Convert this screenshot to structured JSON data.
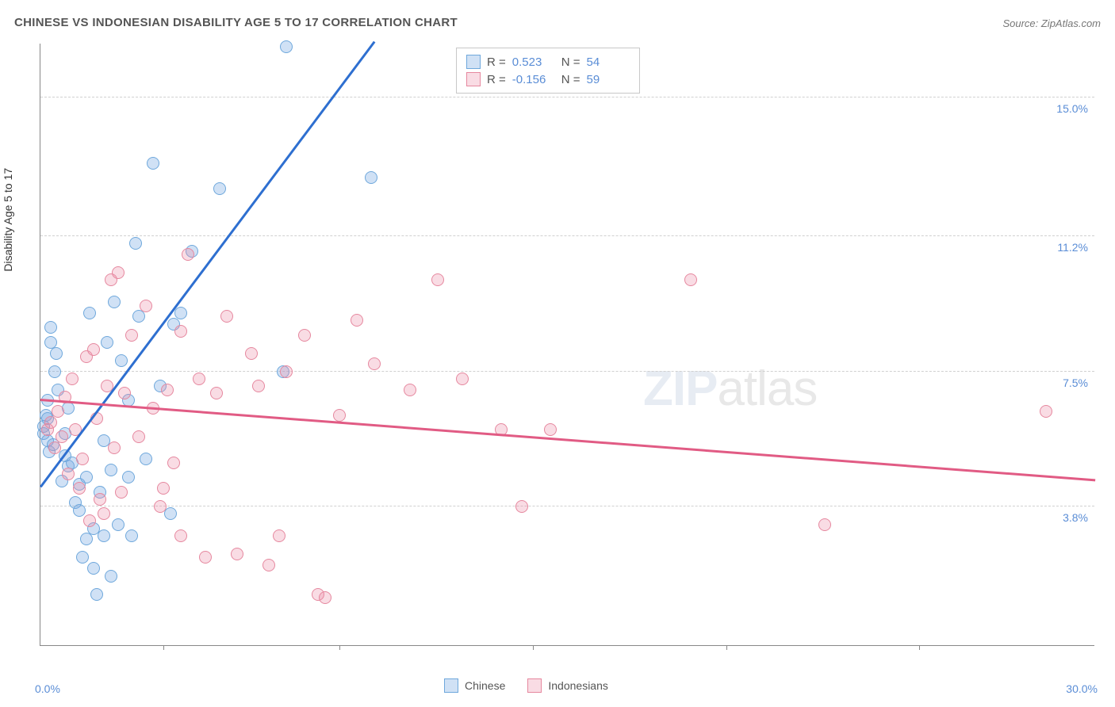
{
  "title": "CHINESE VS INDONESIAN DISABILITY AGE 5 TO 17 CORRELATION CHART",
  "source": "Source: ZipAtlas.com",
  "watermark_bold": "ZIP",
  "watermark_thin": "atlas",
  "chart": {
    "type": "scatter",
    "ylabel": "Disability Age 5 to 17",
    "xlim": [
      0,
      30
    ],
    "ylim": [
      0,
      16.5
    ],
    "x_axis_label_min": "0.0%",
    "x_axis_label_max": "30.0%",
    "xticks": [
      3.5,
      8.5,
      14.0,
      19.5,
      25.0
    ],
    "ygrid": [
      {
        "value": 3.8,
        "label": "3.8%"
      },
      {
        "value": 7.5,
        "label": "7.5%"
      },
      {
        "value": 11.2,
        "label": "11.2%"
      },
      {
        "value": 15.0,
        "label": "15.0%"
      }
    ],
    "background_color": "#ffffff",
    "grid_color": "#d0d0d0",
    "axis_color": "#888888",
    "tick_label_color": "#5a8dd6",
    "series": [
      {
        "name": "Chinese",
        "fill_color": "rgba(120,170,225,0.35)",
        "stroke_color": "#6fa8dc",
        "trend_color": "#2e6fd0",
        "trend": {
          "x1": 0.0,
          "y1": 4.3,
          "x2": 9.5,
          "y2": 16.5,
          "dash_extend_x": 11.5
        },
        "R": "0.523",
        "N": "54",
        "points": [
          [
            0.1,
            5.8
          ],
          [
            0.1,
            6.0
          ],
          [
            0.15,
            6.3
          ],
          [
            0.2,
            5.6
          ],
          [
            0.2,
            6.2
          ],
          [
            0.2,
            6.7
          ],
          [
            0.25,
            5.3
          ],
          [
            0.3,
            8.7
          ],
          [
            0.3,
            8.3
          ],
          [
            0.35,
            5.5
          ],
          [
            0.4,
            7.5
          ],
          [
            0.45,
            8.0
          ],
          [
            0.5,
            7.0
          ],
          [
            0.6,
            4.5
          ],
          [
            0.7,
            5.2
          ],
          [
            0.7,
            5.8
          ],
          [
            0.8,
            4.9
          ],
          [
            0.8,
            6.5
          ],
          [
            0.9,
            5.0
          ],
          [
            1.0,
            3.9
          ],
          [
            1.1,
            3.7
          ],
          [
            1.1,
            4.4
          ],
          [
            1.2,
            2.4
          ],
          [
            1.3,
            4.6
          ],
          [
            1.3,
            2.9
          ],
          [
            1.4,
            9.1
          ],
          [
            1.5,
            3.2
          ],
          [
            1.5,
            2.1
          ],
          [
            1.6,
            1.4
          ],
          [
            1.7,
            4.2
          ],
          [
            1.8,
            3.0
          ],
          [
            1.9,
            8.3
          ],
          [
            2.0,
            4.8
          ],
          [
            2.1,
            9.4
          ],
          [
            2.2,
            3.3
          ],
          [
            2.3,
            7.8
          ],
          [
            2.5,
            4.6
          ],
          [
            2.5,
            6.7
          ],
          [
            2.7,
            11.0
          ],
          [
            2.8,
            9.0
          ],
          [
            3.0,
            5.1
          ],
          [
            3.2,
            13.2
          ],
          [
            3.4,
            7.1
          ],
          [
            3.7,
            3.6
          ],
          [
            3.8,
            8.8
          ],
          [
            4.0,
            9.1
          ],
          [
            4.3,
            10.8
          ],
          [
            5.1,
            12.5
          ],
          [
            7.0,
            16.4
          ],
          [
            6.9,
            7.5
          ],
          [
            9.4,
            12.8
          ],
          [
            2.0,
            1.9
          ],
          [
            2.6,
            3.0
          ],
          [
            1.8,
            5.6
          ]
        ]
      },
      {
        "name": "Indonesians",
        "fill_color": "rgba(235,140,165,0.30)",
        "stroke_color": "#e6889f",
        "trend_color": "#e15b84",
        "trend": {
          "x1": 0.0,
          "y1": 6.7,
          "x2": 30.0,
          "y2": 4.5
        },
        "R": "-0.156",
        "N": "59",
        "points": [
          [
            0.2,
            5.9
          ],
          [
            0.3,
            6.1
          ],
          [
            0.4,
            5.4
          ],
          [
            0.5,
            6.4
          ],
          [
            0.6,
            5.7
          ],
          [
            0.7,
            6.8
          ],
          [
            0.8,
            4.7
          ],
          [
            0.9,
            7.3
          ],
          [
            1.0,
            5.9
          ],
          [
            1.1,
            4.3
          ],
          [
            1.2,
            5.1
          ],
          [
            1.3,
            7.9
          ],
          [
            1.4,
            3.4
          ],
          [
            1.5,
            8.1
          ],
          [
            1.6,
            6.2
          ],
          [
            1.7,
            4.0
          ],
          [
            1.8,
            3.6
          ],
          [
            1.9,
            7.1
          ],
          [
            2.0,
            10.0
          ],
          [
            2.1,
            5.4
          ],
          [
            2.3,
            4.2
          ],
          [
            2.4,
            6.9
          ],
          [
            2.6,
            8.5
          ],
          [
            2.8,
            5.7
          ],
          [
            3.0,
            9.3
          ],
          [
            3.2,
            6.5
          ],
          [
            3.4,
            3.8
          ],
          [
            3.6,
            7.0
          ],
          [
            3.8,
            5.0
          ],
          [
            4.0,
            8.6
          ],
          [
            4.2,
            10.7
          ],
          [
            4.5,
            7.3
          ],
          [
            4.7,
            2.4
          ],
          [
            5.0,
            6.9
          ],
          [
            5.3,
            9.0
          ],
          [
            5.6,
            2.5
          ],
          [
            6.0,
            8.0
          ],
          [
            6.2,
            7.1
          ],
          [
            6.5,
            2.2
          ],
          [
            7.0,
            7.5
          ],
          [
            7.5,
            8.5
          ],
          [
            7.9,
            1.4
          ],
          [
            8.1,
            1.3
          ],
          [
            8.5,
            6.3
          ],
          [
            9.0,
            8.9
          ],
          [
            9.5,
            7.7
          ],
          [
            10.5,
            7.0
          ],
          [
            11.3,
            10.0
          ],
          [
            12.0,
            7.3
          ],
          [
            13.1,
            5.9
          ],
          [
            13.7,
            3.8
          ],
          [
            14.5,
            5.9
          ],
          [
            18.5,
            10.0
          ],
          [
            22.3,
            3.3
          ],
          [
            28.6,
            6.4
          ],
          [
            6.8,
            3.0
          ],
          [
            4.0,
            3.0
          ],
          [
            3.5,
            4.3
          ],
          [
            2.2,
            10.2
          ]
        ]
      }
    ]
  },
  "legend_bottom": [
    {
      "label": "Chinese",
      "fill": "rgba(120,170,225,0.35)",
      "stroke": "#6fa8dc"
    },
    {
      "label": "Indonesians",
      "fill": "rgba(235,140,165,0.30)",
      "stroke": "#e6889f"
    }
  ]
}
